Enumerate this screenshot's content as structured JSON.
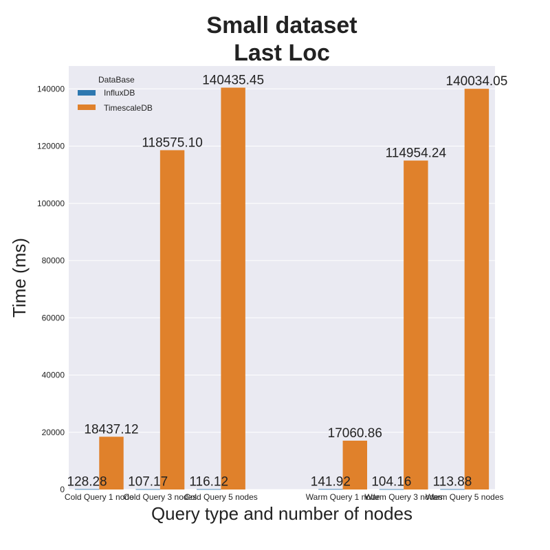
{
  "chart_data": {
    "type": "bar",
    "title_lines": [
      "Small dataset",
      "Last Loc"
    ],
    "xlabel": "Query type and number of nodes",
    "ylabel": "Time (ms)",
    "ylim": [
      0,
      148000
    ],
    "yticks": [
      0,
      20000,
      40000,
      60000,
      80000,
      100000,
      120000,
      140000
    ],
    "grid": true,
    "legend_position": "top-left",
    "legend_title": "DataBase",
    "categories": [
      "Cold Query 1 node",
      "Cold Query 3 nodes",
      "Cold Query 5 nodes",
      "",
      "Warm Query 1 node",
      "Warm Query 3 nodes",
      "Warm Query 5 nodes"
    ],
    "series": [
      {
        "name": "InfluxDB",
        "color": "#2e78b0",
        "values": [
          128.28,
          107.17,
          116.12,
          null,
          141.92,
          104.16,
          113.88
        ],
        "labels": [
          "128.28",
          "107.17",
          "116.12",
          "",
          "141.92",
          "104.16",
          "113.88"
        ]
      },
      {
        "name": "TimescaleDB",
        "color": "#e0812b",
        "values": [
          18437.12,
          118575.1,
          140435.45,
          null,
          17060.86,
          114954.24,
          140034.05
        ],
        "labels": [
          "18437.12",
          "118575.10",
          "140435.45",
          "",
          "17060.86",
          "114954.24",
          "140034.05"
        ]
      }
    ]
  }
}
